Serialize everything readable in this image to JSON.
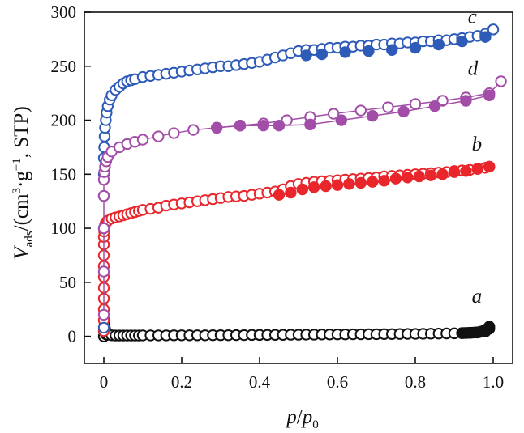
{
  "chart_data": {
    "type": "scatter",
    "title": "",
    "xlabel": {
      "base": "p",
      "sep": "/",
      "den": "p",
      "den_sub": "0"
    },
    "ylabel": {
      "v": "V",
      "v_sub": "ads",
      "slash": "/(cm",
      "sup3": "3",
      "mid": "·g",
      "supm1": "−1",
      "tail": ", STP)"
    },
    "xlim": [
      -0.05,
      1.05
    ],
    "ylim": [
      -25,
      300
    ],
    "xticks": [
      {
        "v": 0,
        "label": "0"
      },
      {
        "v": 0.2,
        "label": "0.2"
      },
      {
        "v": 0.4,
        "label": "0.4"
      },
      {
        "v": 0.6,
        "label": "0.6"
      },
      {
        "v": 0.8,
        "label": "0.8"
      },
      {
        "v": 1.0,
        "label": "1.0"
      }
    ],
    "yticks": [
      {
        "v": 0,
        "label": "0"
      },
      {
        "v": 50,
        "label": "50"
      },
      {
        "v": 100,
        "label": "100"
      },
      {
        "v": 150,
        "label": "150"
      },
      {
        "v": 200,
        "label": "200"
      },
      {
        "v": 250,
        "label": "250"
      },
      {
        "v": 300,
        "label": "300"
      }
    ],
    "series": [
      {
        "name": "a",
        "color": "#111111",
        "connect": false,
        "adsorption": {
          "x": [
            0.0,
            0.001,
            0.002,
            0.003,
            0.004,
            0.005,
            0.01,
            0.02,
            0.03,
            0.04,
            0.05,
            0.06,
            0.07,
            0.08,
            0.09,
            0.1,
            0.12,
            0.14,
            0.16,
            0.18,
            0.2,
            0.22,
            0.24,
            0.26,
            0.28,
            0.3,
            0.32,
            0.34,
            0.36,
            0.38,
            0.4,
            0.42,
            0.44,
            0.46,
            0.48,
            0.5,
            0.52,
            0.54,
            0.56,
            0.58,
            0.6,
            0.62,
            0.64,
            0.66,
            0.68,
            0.7,
            0.72,
            0.74,
            0.76,
            0.78,
            0.8,
            0.82,
            0.84,
            0.86,
            0.88,
            0.9,
            0.92,
            0.94,
            0.96,
            0.98,
            0.99
          ],
          "y": [
            0,
            15,
            11,
            7,
            4,
            2,
            1.5,
            1,
            0.8,
            0.8,
            0.8,
            0.8,
            0.8,
            0.8,
            0.8,
            0.9,
            0.9,
            0.9,
            0.9,
            1,
            1,
            1,
            1,
            1,
            1.1,
            1.1,
            1.1,
            1.2,
            1.2,
            1.3,
            1.3,
            1.3,
            1.4,
            1.4,
            1.5,
            1.5,
            1.6,
            1.6,
            1.7,
            1.7,
            1.8,
            1.8,
            1.9,
            1.9,
            2,
            2,
            2.1,
            2.1,
            2.2,
            2.3,
            2.3,
            2.4,
            2.5,
            2.6,
            2.7,
            2.8,
            3,
            3.2,
            3.5,
            4.5,
            7
          ]
        },
        "desorption": {
          "x": [
            0.99,
            0.985,
            0.98,
            0.975,
            0.97,
            0.965,
            0.96,
            0.955,
            0.95,
            0.945,
            0.94,
            0.935,
            0.93,
            0.925,
            0.92
          ],
          "y": [
            9,
            7,
            6,
            5,
            4.5,
            4,
            3.8,
            3.6,
            3.5,
            3.4,
            3.3,
            3.2,
            3.1,
            3.1,
            3
          ]
        }
      },
      {
        "name": "b",
        "color": "#e8262b",
        "connect": false,
        "adsorption": {
          "x": [
            0.0,
            0.0,
            0.0,
            0.0,
            0.0,
            0.0,
            0.0,
            0.0,
            0.0,
            0.0,
            0.001,
            0.002,
            0.003,
            0.005,
            0.007,
            0.01,
            0.02,
            0.03,
            0.04,
            0.05,
            0.06,
            0.07,
            0.08,
            0.09,
            0.1,
            0.12,
            0.14,
            0.16,
            0.18,
            0.2,
            0.22,
            0.24,
            0.26,
            0.28,
            0.3,
            0.32,
            0.34,
            0.36,
            0.38,
            0.4,
            0.42,
            0.44,
            0.46,
            0.48,
            0.5,
            0.52,
            0.54,
            0.56,
            0.58,
            0.6,
            0.62,
            0.64,
            0.66,
            0.68,
            0.7,
            0.72,
            0.74,
            0.76,
            0.78,
            0.8,
            0.82,
            0.84,
            0.86,
            0.88,
            0.9,
            0.92,
            0.94,
            0.96,
            0.98,
            0.99
          ],
          "y": [
            5,
            15,
            25,
            35,
            45,
            55,
            65,
            75,
            85,
            92,
            97,
            101,
            103,
            105,
            106,
            107,
            109,
            110,
            111,
            112,
            113,
            114,
            115,
            116,
            117,
            118,
            119,
            121,
            122,
            123,
            124,
            125,
            126,
            127,
            128,
            129,
            129.5,
            130,
            131,
            132,
            133,
            134,
            136,
            139,
            141,
            142,
            143,
            143.5,
            144,
            144.5,
            145,
            145.5,
            146,
            146.5,
            147,
            148,
            148.5,
            149,
            149.5,
            150,
            150.5,
            151,
            151.5,
            152,
            153,
            153.5,
            154,
            155,
            156,
            157
          ]
        },
        "desorption": {
          "x": [
            0.99,
            0.96,
            0.93,
            0.9,
            0.87,
            0.84,
            0.81,
            0.78,
            0.75,
            0.72,
            0.69,
            0.66,
            0.63,
            0.6,
            0.57,
            0.54,
            0.51,
            0.48,
            0.45
          ],
          "y": [
            157,
            155,
            153,
            152,
            150,
            149,
            148,
            147,
            146,
            144,
            143,
            142,
            141,
            140,
            139,
            138,
            136,
            133,
            131
          ]
        }
      },
      {
        "name": "c",
        "color": "#2e5bb8",
        "connect": false,
        "adsorption": {
          "x": [
            0.0,
            0.0,
            0.0,
            0.0,
            0.0,
            0.001,
            0.002,
            0.003,
            0.005,
            0.007,
            0.01,
            0.015,
            0.02,
            0.03,
            0.04,
            0.05,
            0.06,
            0.07,
            0.08,
            0.1,
            0.12,
            0.14,
            0.16,
            0.18,
            0.2,
            0.22,
            0.24,
            0.26,
            0.28,
            0.3,
            0.32,
            0.34,
            0.36,
            0.38,
            0.4,
            0.42,
            0.44,
            0.46,
            0.48,
            0.5,
            0.52,
            0.54,
            0.56,
            0.58,
            0.6,
            0.62,
            0.64,
            0.66,
            0.68,
            0.7,
            0.72,
            0.74,
            0.76,
            0.78,
            0.8,
            0.82,
            0.84,
            0.86,
            0.88,
            0.9,
            0.92,
            0.94,
            0.96,
            0.98,
            1.0
          ],
          "y": [
            8,
            100,
            130,
            150,
            165,
            175,
            185,
            193,
            200,
            207,
            213,
            219,
            223,
            228,
            231,
            234,
            236,
            237,
            238,
            240,
            241,
            242,
            243,
            244,
            245,
            246,
            247,
            248,
            249,
            250,
            250,
            251,
            252,
            253,
            254,
            256,
            258,
            260,
            262,
            264,
            265,
            265,
            266,
            267,
            267,
            268,
            268,
            269,
            269,
            270,
            270,
            271,
            271,
            272,
            272,
            273,
            273,
            274,
            274,
            275,
            276,
            277,
            278,
            280,
            284
          ]
        },
        "desorption": {
          "x": [
            0.98,
            0.92,
            0.86,
            0.8,
            0.74,
            0.68,
            0.62,
            0.56,
            0.52
          ],
          "y": [
            277,
            273,
            270,
            267,
            265,
            264,
            263,
            261,
            260
          ]
        }
      },
      {
        "name": "d",
        "color": "#a24ea8",
        "connect": true,
        "adsorption": {
          "x": [
            0.0,
            0.0,
            0.0,
            0.0,
            0.0,
            0.001,
            0.003,
            0.006,
            0.01,
            0.02,
            0.04,
            0.06,
            0.08,
            0.1,
            0.14,
            0.18,
            0.23,
            0.29,
            0.35,
            0.41,
            0.47,
            0.53,
            0.59,
            0.66,
            0.73,
            0.8,
            0.87,
            0.93,
            0.99,
            1.02
          ],
          "y": [
            20,
            60,
            100,
            130,
            145,
            152,
            157,
            162,
            166,
            171,
            175,
            178,
            180,
            182,
            185,
            188,
            191,
            193,
            195,
            197,
            200,
            203,
            206,
            209,
            212,
            215,
            218,
            221,
            225,
            236
          ]
        },
        "desorption": {
          "x": [
            0.99,
            0.93,
            0.85,
            0.77,
            0.69,
            0.61,
            0.53,
            0.45,
            0.41,
            0.35,
            0.29
          ],
          "y": [
            223,
            218,
            213,
            208,
            204,
            200,
            196,
            195,
            195,
            195,
            193
          ]
        }
      }
    ],
    "annotations": [
      {
        "text": "a",
        "x": 0.945,
        "y": 31
      },
      {
        "text": "b",
        "x": 0.945,
        "y": 172
      },
      {
        "text": "c",
        "x": 0.935,
        "y": 290
      },
      {
        "text": "d",
        "x": 0.935,
        "y": 242
      }
    ]
  }
}
